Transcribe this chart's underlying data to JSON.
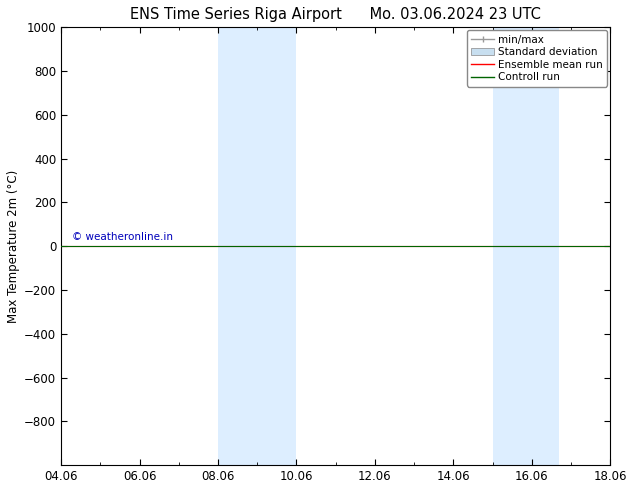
{
  "title_left": "ENS Time Series Riga Airport",
  "title_right": "Mo. 03.06.2024 23 UTC",
  "ylabel": "Max Temperature 2m (°C)",
  "xlabel_ticks": [
    "04.06",
    "06.06",
    "08.06",
    "10.06",
    "12.06",
    "14.06",
    "16.06",
    "18.06"
  ],
  "ylim_top": -1000,
  "ylim_bottom": 1000,
  "yticks": [
    -800,
    -600,
    -400,
    -200,
    0,
    200,
    400,
    600,
    800,
    1000
  ],
  "xlim": [
    0,
    14
  ],
  "shaded_regions": [
    {
      "x_start": 4.0,
      "x_end": 5.5,
      "color": "#ddeeff"
    },
    {
      "x_start": 5.5,
      "x_end": 6.0,
      "color": "#ddeeff"
    },
    {
      "x_start": 11.0,
      "x_end": 12.0,
      "color": "#ddeeff"
    },
    {
      "x_start": 12.0,
      "x_end": 12.7,
      "color": "#ddeeff"
    }
  ],
  "hline_y": 0,
  "hline_color_ensemble": "#ff0000",
  "hline_color_control": "#006400",
  "copyright_text": "© weatheronline.in",
  "copyright_color": "#0000bb",
  "legend_items": [
    {
      "label": "min/max",
      "color": "#999999",
      "lw": 1.0
    },
    {
      "label": "Standard deviation",
      "color": "#c8dff0",
      "lw": 8
    },
    {
      "label": "Ensemble mean run",
      "color": "#ff0000",
      "lw": 1.0
    },
    {
      "label": "Controll run",
      "color": "#006400",
      "lw": 1.0
    }
  ],
  "bg_color": "#ffffff",
  "spine_color": "#000000",
  "tick_label_fontsize": 8.5,
  "axis_label_fontsize": 8.5,
  "title_fontsize": 10.5,
  "copyright_fontsize": 7.5,
  "legend_fontsize": 7.5
}
